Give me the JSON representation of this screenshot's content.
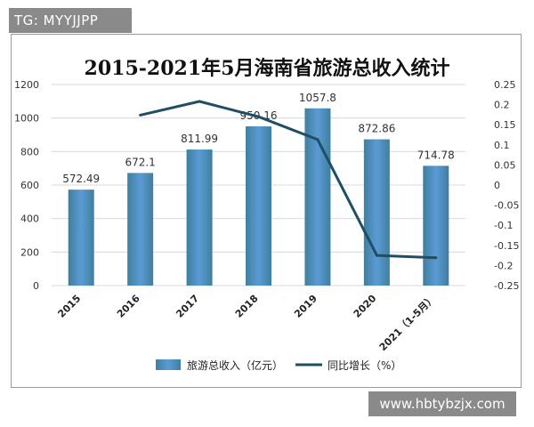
{
  "watermarks": {
    "top": "TG: MYYJJPP",
    "bottom": "www.hbtybzjx.com"
  },
  "chart_data": {
    "type": "bar",
    "title": "2015-2021年5月海南省旅游总收入统计",
    "categories": [
      "2015",
      "2016",
      "2017",
      "2018",
      "2019",
      "2020",
      "2021（1-5月）"
    ],
    "series": [
      {
        "name": "旅游总收入（亿元）",
        "type": "bar",
        "axis": "left",
        "values": [
          572.49,
          672.1,
          811.99,
          950.16,
          1057.8,
          872.86,
          714.78
        ],
        "labels": [
          "572.49",
          "672.1",
          "811.99",
          "950.16",
          "1057.8",
          "872.86",
          "714.78"
        ],
        "color": "#5b9bd5"
      },
      {
        "name": "同比增长（%）",
        "type": "line",
        "axis": "right",
        "values": [
          null,
          0.174,
          0.208,
          0.17,
          0.113,
          -0.175,
          -0.181
        ],
        "color": "#1f4e65"
      }
    ],
    "y_left": {
      "min": 0,
      "max": 1200,
      "ticks": [
        "0",
        "200",
        "400",
        "600",
        "800",
        "1000",
        "1200"
      ]
    },
    "y_right": {
      "min": -0.25,
      "max": 0.25,
      "ticks": [
        "0.25",
        "0.2",
        "0.15",
        "0.1",
        "0.05",
        "0",
        "-0.05",
        "-0.1",
        "-0.15",
        "-0.2",
        "-0.25"
      ]
    },
    "grid": true,
    "legend": "bottom"
  }
}
